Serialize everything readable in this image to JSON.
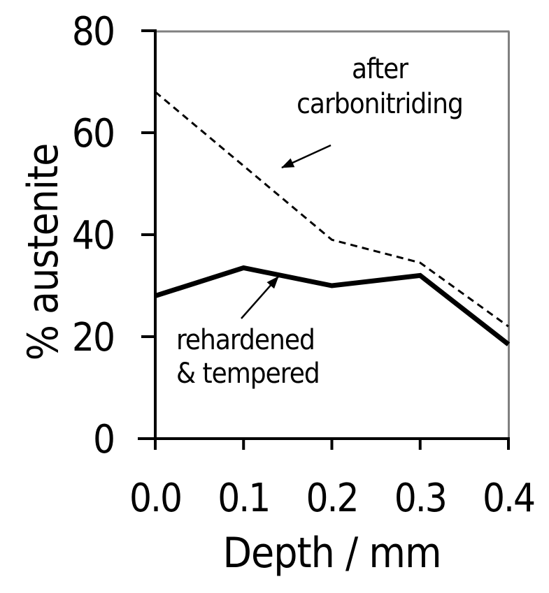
{
  "page": {
    "background": "#ffffff"
  },
  "colors": {
    "axis": "#000000",
    "frame": "#808080",
    "series": "#000000",
    "text": "#000000"
  },
  "chart_data": {
    "type": "line",
    "title": "",
    "xlabel": "Depth / mm",
    "ylabel": "% austenite",
    "xlim": [
      0,
      0.4
    ],
    "ylim": [
      0,
      80
    ],
    "grid": false,
    "legend_position": "none (series identified by in-plot annotations with arrows)",
    "frame": "black left/bottom axes with outward ticks; gray top/right border",
    "xticks": {
      "values": [
        0,
        0.1,
        0.2,
        0.3,
        0.4
      ],
      "labels": [
        "0.0",
        "0.1",
        "0.2",
        "0.3",
        "0.4"
      ]
    },
    "yticks": {
      "values": [
        0,
        20,
        40,
        60,
        80
      ],
      "labels": [
        "0",
        "20",
        "40",
        "60",
        "80"
      ]
    },
    "series": [
      {
        "name": "after carbonitriding",
        "line_style": "dashed",
        "line_width": 3,
        "color": "#000000",
        "x": [
          0.0,
          0.2,
          0.3,
          0.4
        ],
        "y": [
          68,
          39,
          34.5,
          22
        ]
      },
      {
        "name": "rehardened & tempered",
        "line_style": "solid",
        "line_width": 7,
        "color": "#000000",
        "x": [
          0.0,
          0.1,
          0.2,
          0.3,
          0.4
        ],
        "y": [
          28,
          33.5,
          30,
          32,
          18.5
        ]
      }
    ],
    "annotations": [
      {
        "text": "after\ncarbonitriding",
        "target_series": "after carbonitriding",
        "arrow": "points down-left to the dashed curve"
      },
      {
        "text": "rehardened\n& tempered",
        "target_series": "rehardened & tempered",
        "arrow": "points up-right to the solid curve"
      }
    ]
  }
}
